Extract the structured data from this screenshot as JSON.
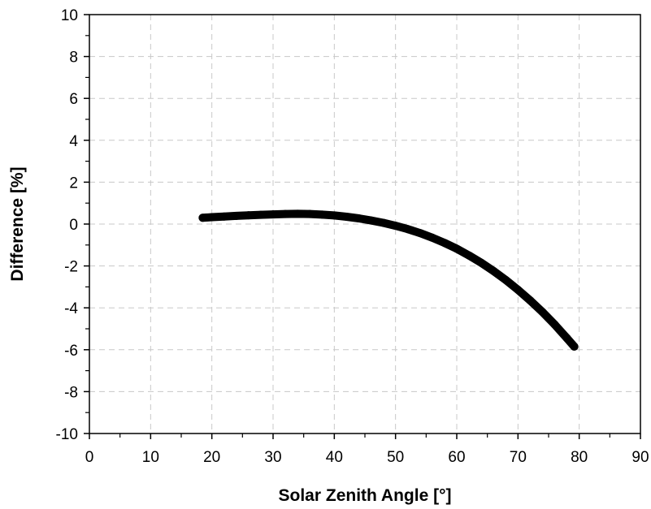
{
  "chart_data": {
    "type": "scatter",
    "xlabel": "Solar Zenith Angle [°]",
    "ylabel": "Difference [%]",
    "xlim": [
      0,
      90
    ],
    "ylim": [
      -10,
      10
    ],
    "x_ticks": [
      0,
      10,
      20,
      30,
      40,
      50,
      60,
      70,
      80,
      90
    ],
    "y_ticks": [
      -10,
      -8,
      -6,
      -4,
      -2,
      0,
      2,
      4,
      6,
      8,
      10
    ],
    "grid": true,
    "grid_style": "dashed",
    "series": [
      {
        "color": "#000000",
        "x": [
          18.5,
          20,
          22,
          24,
          26,
          28,
          30,
          32,
          34,
          36,
          38,
          40,
          42,
          44,
          46,
          48,
          50,
          52,
          54,
          56,
          58,
          60,
          62,
          64,
          66,
          68,
          70,
          72,
          74,
          76,
          78,
          79.2
        ],
        "y": [
          0.3,
          0.33,
          0.36,
          0.39,
          0.42,
          0.44,
          0.46,
          0.48,
          0.49,
          0.48,
          0.45,
          0.41,
          0.35,
          0.27,
          0.17,
          0.06,
          -0.08,
          -0.24,
          -0.43,
          -0.65,
          -0.9,
          -1.18,
          -1.5,
          -1.85,
          -2.24,
          -2.67,
          -3.14,
          -3.65,
          -4.2,
          -4.8,
          -5.45,
          -5.85
        ]
      }
    ]
  }
}
